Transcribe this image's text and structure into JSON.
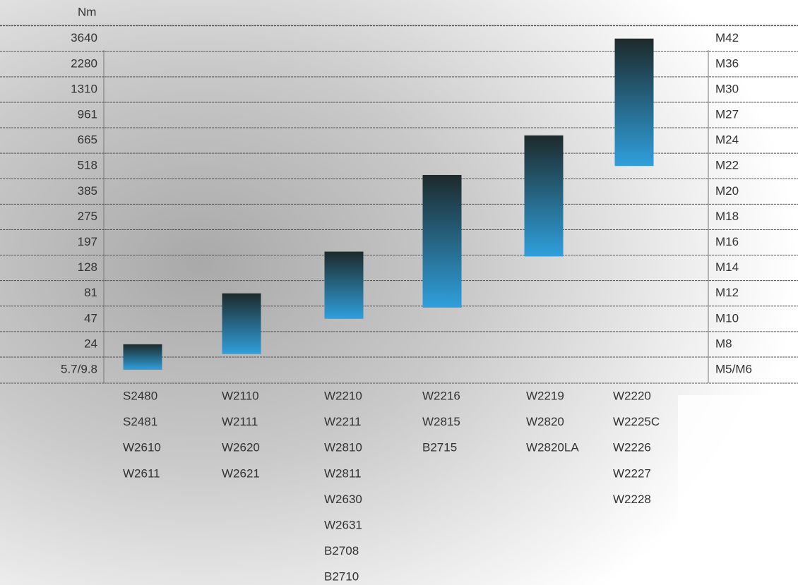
{
  "chart_data": {
    "type": "range_bar",
    "y_unit": "Nm",
    "yticks": [
      {
        "value": 5.7,
        "label": "5.7/9.8"
      },
      24,
      47,
      81,
      128,
      197,
      275,
      385,
      518,
      665,
      961,
      1310,
      2280,
      3640
    ],
    "size_labels": [
      "M5/M6",
      "M8",
      "M10",
      "M12",
      "M14",
      "M16",
      "M18",
      "M20",
      "M22",
      "M24",
      "M27",
      "M30",
      "M36",
      "M42"
    ],
    "colors": [
      "#1d2a2b",
      "#2f9fdc"
    ],
    "bars": [
      {
        "low": 5.7,
        "high": 24,
        "models": [
          "S2480",
          "S2481",
          "W2610",
          "W2611"
        ]
      },
      {
        "low": 17,
        "high": 81,
        "models": [
          "W2110",
          "W2111",
          "W2620",
          "W2621"
        ]
      },
      {
        "low": 47,
        "high": 172,
        "models": [
          "W2210",
          "W2211",
          "W2810",
          "W2811",
          "W2630",
          "W2631",
          "B2708",
          "B2710"
        ]
      },
      {
        "low": 62,
        "high": 471,
        "models": [
          "W2216",
          "W2815",
          "B2715"
        ]
      },
      {
        "low": 159,
        "high": 724,
        "models": [
          "W2219",
          "W2820",
          "W2820LA"
        ]
      },
      {
        "low": 518,
        "high": 3640,
        "models": [
          "W2220",
          "W2225C",
          "W2226",
          "W2227",
          "W2228"
        ]
      }
    ]
  }
}
